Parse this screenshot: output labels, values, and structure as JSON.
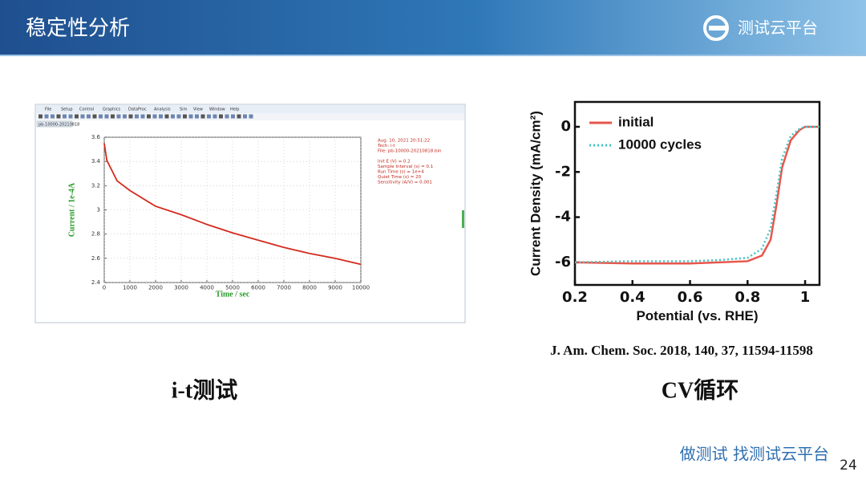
{
  "header": {
    "title": "稳定性分析",
    "logo": "测试云平台"
  },
  "software_window": {
    "menu": [
      "File",
      "Setup",
      "Control",
      "Graphics",
      "DataProc",
      "Analysis",
      "Sim",
      "View",
      "Window",
      "Help"
    ],
    "tab": "pb-10000-20210818"
  },
  "chart_data": [
    {
      "type": "line",
      "xlabel": "Time / sec",
      "ylabel": "Current / 1e-4A",
      "color": "#d42a1e",
      "grid": true,
      "x": [
        0,
        100,
        500,
        1000,
        2000,
        3000,
        4000,
        5000,
        6000,
        7000,
        8000,
        9000,
        10000
      ],
      "values": [
        3.55,
        3.41,
        3.24,
        3.16,
        3.03,
        2.96,
        2.88,
        2.81,
        2.75,
        2.69,
        2.64,
        2.6,
        2.55
      ],
      "xlim": [
        0,
        10000
      ],
      "xticks": [
        0,
        1000,
        2000,
        3000,
        4000,
        5000,
        6000,
        7000,
        8000,
        9000,
        10000
      ],
      "ylim": [
        2.4,
        3.6
      ],
      "yticks": [
        2.4,
        2.6,
        2.8,
        3.0,
        3.2,
        3.4,
        3.6
      ],
      "annotations": [
        "Aug. 10, 2021   20:51:22",
        "Tech: i-t",
        "File: pb-10000-20210818.bin",
        "Init E (V) = 0.2",
        "Sample Interval (s) = 0.1",
        "Run Time (s) = 1e+4",
        "Quiet Time (s) = 20",
        "Sensitivity (A/V) = 0.001"
      ]
    },
    {
      "type": "line",
      "xlabel": "Potential (vs. RHE)",
      "ylabel": "Current Density (mA/cm²)",
      "grid": false,
      "legend": "upper left",
      "x": [
        0.2,
        0.4,
        0.6,
        0.7,
        0.8,
        0.85,
        0.88,
        0.9,
        0.92,
        0.95,
        0.98,
        1.0,
        1.05
      ],
      "series": [
        {
          "name": "initial",
          "color": "#e8564c",
          "dash": false,
          "values": [
            -6.0,
            -6.05,
            -6.05,
            -6.0,
            -5.95,
            -5.7,
            -5.0,
            -3.5,
            -1.8,
            -0.6,
            -0.15,
            0,
            0
          ]
        },
        {
          "name": "10000 cycles",
          "color": "#40c4c4",
          "dash": true,
          "values": [
            -6.0,
            -5.95,
            -5.95,
            -5.9,
            -5.8,
            -5.4,
            -4.5,
            -3.0,
            -1.4,
            -0.4,
            -0.1,
            0,
            0
          ]
        }
      ],
      "xlim": [
        0.2,
        1.05
      ],
      "xticks": [
        0.2,
        0.4,
        0.6,
        0.8,
        1.0
      ],
      "ylim": [
        -7,
        1.1
      ],
      "yticks": [
        0,
        -2,
        -4,
        -6
      ]
    }
  ],
  "citation": "J. Am. Chem. Soc. 2018, 140, 37, 11594-11598",
  "captions": [
    "i-t测试",
    "CV循环"
  ],
  "footer": {
    "slogan": "做测试  找测试云平台",
    "page": "24"
  }
}
